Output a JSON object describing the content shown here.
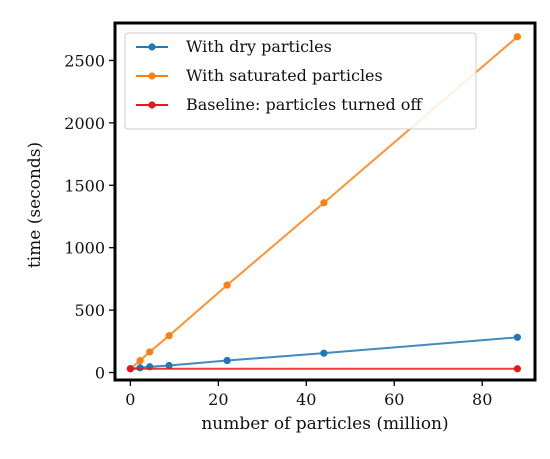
{
  "chart_data": {
    "type": "line",
    "title": "",
    "xlabel": "number of particles (million)",
    "ylabel": "time (seconds)",
    "xlim": [
      -3.5,
      92
    ],
    "ylim": [
      -60,
      2800
    ],
    "xticks": [
      0,
      20,
      40,
      60,
      80
    ],
    "yticks": [
      0,
      500,
      1000,
      1500,
      2000,
      2500
    ],
    "grid": false,
    "legend_position": "top-left",
    "series": [
      {
        "name": "With dry particles",
        "color": "#1f77b4",
        "x": [
          0,
          2.2,
          4.4,
          8.8,
          22,
          44,
          88
        ],
        "y": [
          30,
          38,
          46,
          56,
          96,
          155,
          282
        ]
      },
      {
        "name": "With saturated particles",
        "color": "#ff7f0e",
        "x": [
          0,
          2.2,
          4.4,
          8.8,
          22,
          44,
          88
        ],
        "y": [
          30,
          95,
          165,
          295,
          700,
          1360,
          2690
        ]
      },
      {
        "name": "Baseline: particles turned off",
        "color": "#e31a1c",
        "x": [
          0,
          88
        ],
        "y": [
          30,
          30
        ]
      }
    ]
  }
}
